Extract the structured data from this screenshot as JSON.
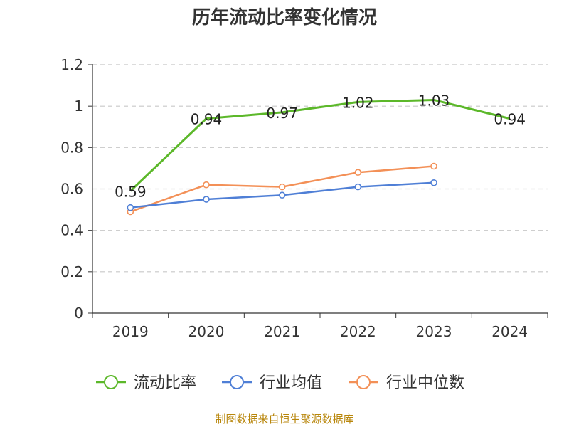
{
  "chart_data": {
    "type": "line",
    "title": "历年流动比率变化情况",
    "categories": [
      "2019",
      "2020",
      "2021",
      "2022",
      "2023",
      "2024"
    ],
    "ylim": [
      0,
      1.2
    ],
    "yticks": [
      "0",
      "0.2",
      "0.4",
      "0.6",
      "0.8",
      "1",
      "1.2"
    ],
    "grid": true,
    "legend_position": "bottom",
    "series": [
      {
        "name": "流动比率",
        "color": "#5cb82a",
        "values": [
          0.59,
          0.94,
          0.97,
          1.02,
          1.03,
          0.94
        ],
        "labels": [
          "0.59",
          "0.94",
          "0.97",
          "1.02",
          "1.03",
          "0.94"
        ],
        "show_labels": true
      },
      {
        "name": "行业均值",
        "color": "#4f7fd6",
        "values": [
          0.51,
          0.55,
          0.57,
          0.61,
          0.63,
          null
        ],
        "show_labels": false
      },
      {
        "name": "行业中位数",
        "color": "#f39057",
        "values": [
          0.49,
          0.62,
          0.61,
          0.68,
          0.71,
          null
        ],
        "show_labels": false
      }
    ],
    "source": "制图数据来自恒生聚源数据库"
  }
}
